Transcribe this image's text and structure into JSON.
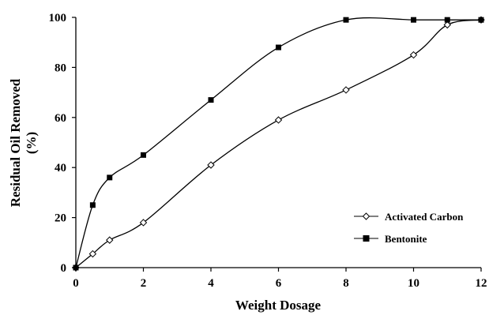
{
  "chart_data": {
    "type": "line",
    "xlabel": "Weight Dosage",
    "ylabel_line1": "Residual Oil Removed",
    "ylabel_line2": "(%)",
    "xlim": [
      0,
      12
    ],
    "ylim": [
      0,
      100
    ],
    "xticks": [
      0,
      2,
      4,
      6,
      8,
      10,
      12
    ],
    "yticks": [
      0,
      20,
      40,
      60,
      80,
      100
    ],
    "grid": false,
    "legend_position": "bottom-right",
    "series": [
      {
        "name": "Activated Carbon",
        "marker": "open-diamond",
        "color": "#000000",
        "x": [
          0,
          0.5,
          1,
          2,
          4,
          6,
          8,
          10,
          11,
          12
        ],
        "y": [
          0,
          5.5,
          11,
          18,
          41,
          59,
          71,
          85,
          97,
          99
        ]
      },
      {
        "name": "Bentonite",
        "marker": "filled-square",
        "color": "#000000",
        "x": [
          0,
          0.5,
          1,
          2,
          4,
          6,
          8,
          10,
          11,
          12
        ],
        "y": [
          0,
          25,
          36,
          45,
          67,
          88,
          99,
          99,
          99,
          99
        ]
      }
    ]
  }
}
